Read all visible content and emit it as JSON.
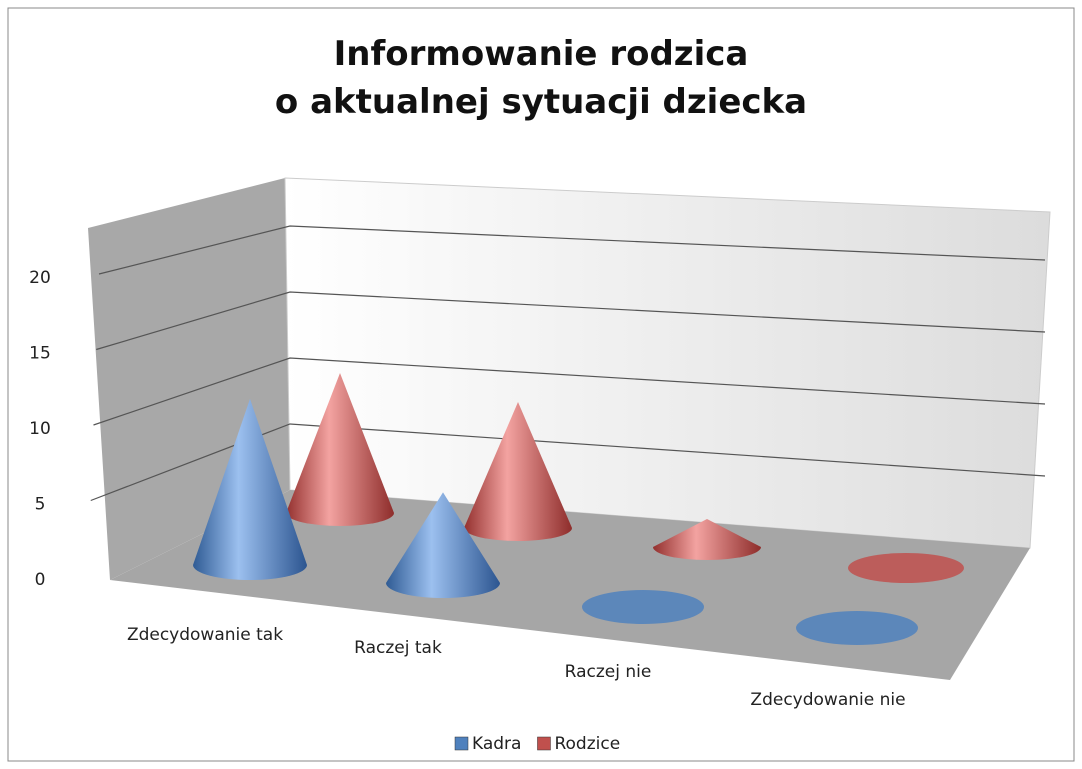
{
  "chart_data": {
    "type": "cone3d",
    "title": "Informowanie rodzica o aktualnej sytuacji dziecka",
    "categories": [
      "Zdecydowanie tak",
      "Raczej tak",
      "Raczej nie",
      "Zdecydowanie nie"
    ],
    "series": [
      {
        "name": "Kadra",
        "color": "#4f81bd",
        "values": [
          11,
          6,
          0,
          0
        ]
      },
      {
        "name": "Rodzice",
        "color": "#c0504d",
        "values": [
          10,
          9,
          2,
          0
        ]
      }
    ],
    "ylim": [
      0,
      20
    ],
    "yticks": [
      0,
      5,
      10,
      15,
      20
    ],
    "grid": true,
    "legend": "bottom"
  }
}
